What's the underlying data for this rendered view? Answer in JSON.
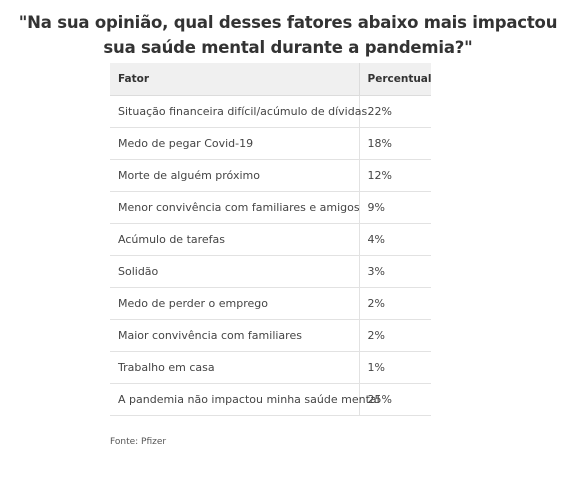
{
  "title": "\"Na sua opinião, qual desses fatores abaixo mais impactou sua saúde mental durante a pandemia?\"",
  "table": {
    "headers": [
      "Fator",
      "Percentual"
    ],
    "rows": [
      [
        "Situação financeira difícil/acúmulo de dívidas",
        "22%"
      ],
      [
        "Medo de pegar Covid-19",
        "18%"
      ],
      [
        "Morte de alguém próximo",
        "12%"
      ],
      [
        "Menor convivência com familiares e amigos",
        "9%"
      ],
      [
        "Acúmulo de tarefas",
        "4%"
      ],
      [
        "Solidão",
        "3%"
      ],
      [
        "Medo de perder o emprego",
        "2%"
      ],
      [
        "Maior convivência com familiares",
        "2%"
      ],
      [
        "Trabalho em casa",
        "1%"
      ],
      [
        "A pandemia não impactou minha saúde mental",
        "25%"
      ]
    ]
  },
  "source": "Fonte: Pfizer"
}
